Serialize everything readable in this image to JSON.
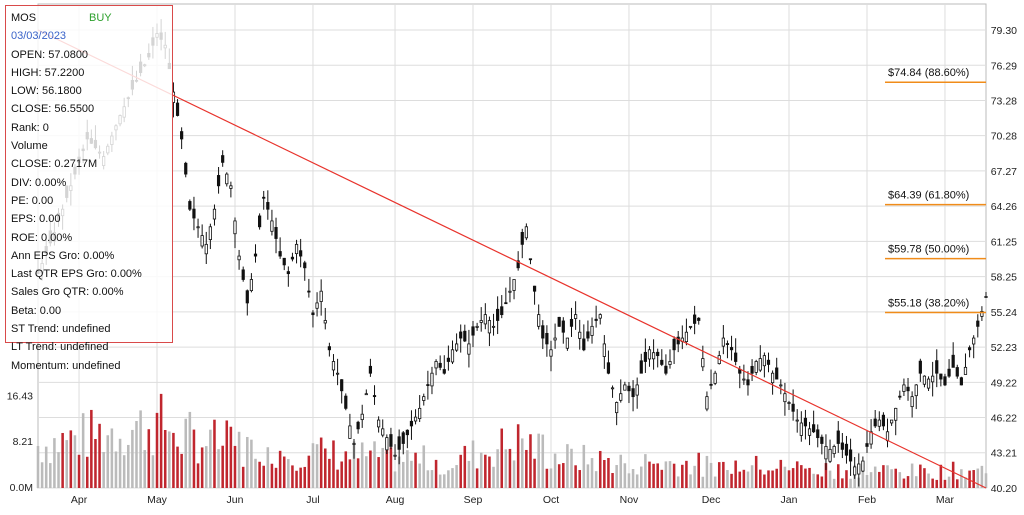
{
  "chart_data": {
    "type": "candlestick",
    "ticker": "MOS",
    "signal": "BUY",
    "date": "03/03/2023",
    "info": {
      "open": "OPEN: 57.0800",
      "high": "HIGH: 57.2200",
      "low": "LOW: 56.1800",
      "close": "CLOSE: 56.5500",
      "rank": "Rank: 0",
      "volume_label": "Volume",
      "volume_close": "CLOSE: 0.2717M",
      "div": "DIV: 0.00%",
      "pe": "PE: 0.00",
      "eps": "EPS: 0.00",
      "roe": "ROE: 0.00%",
      "ann_eps_gro": "Ann EPS Gro: 0.00%",
      "last_qtr_eps_gro": "Last QTR EPS Gro: 0.00%",
      "sales_gro_qtr": "Sales Gro QTR: 0.00%",
      "beta": "Beta: 0.00",
      "st_trend": "ST Trend: undefined",
      "lt_trend": "LT Trend: undefined",
      "momentum": "Momentum: undefined"
    },
    "x_months": [
      "Apr",
      "May",
      "Jun",
      "Jul",
      "Aug",
      "Sep",
      "Oct",
      "Nov",
      "Dec",
      "Jan",
      "Feb",
      "Mar"
    ],
    "price_axis": {
      "ticks": [
        79.3,
        76.29,
        73.28,
        70.28,
        67.27,
        64.26,
        61.25,
        58.25,
        55.24,
        52.23,
        49.22,
        46.22,
        43.21,
        40.2
      ],
      "ylim": [
        40.2,
        79.3
      ]
    },
    "volume_axis": {
      "ticks": [
        "16.43",
        "8.21",
        "0.0M"
      ],
      "values": [
        16.43,
        8.21,
        0.0
      ],
      "max": 21.5
    },
    "fib_levels": [
      {
        "label": "$74.84 (88.60%)",
        "value": 74.84
      },
      {
        "label": "$64.39 (61.80%)",
        "value": 64.39
      },
      {
        "label": "$59.78 (50.00%)",
        "value": 59.78
      },
      {
        "label": "$55.18 (38.20%)",
        "value": 55.18
      }
    ],
    "trendline": {
      "start": {
        "day": 0,
        "price": 79.3
      },
      "end": {
        "day": 231,
        "price": 40.2
      }
    },
    "total_days": 231,
    "close_series": [
      [
        0,
        58.5
      ],
      [
        4,
        62
      ],
      [
        8,
        66
      ],
      [
        12,
        70
      ],
      [
        16,
        68.5
      ],
      [
        20,
        72
      ],
      [
        24,
        75
      ],
      [
        27,
        77
      ],
      [
        29,
        79
      ],
      [
        31,
        78
      ],
      [
        33,
        74
      ],
      [
        35,
        70
      ],
      [
        37,
        64
      ],
      [
        39,
        62.5
      ],
      [
        41,
        61
      ],
      [
        43,
        64
      ],
      [
        45,
        68
      ],
      [
        47,
        66
      ],
      [
        49,
        60
      ],
      [
        51,
        56
      ],
      [
        53,
        60
      ],
      [
        55,
        65
      ],
      [
        57,
        63
      ],
      [
        59,
        60
      ],
      [
        61,
        58.5
      ],
      [
        63,
        61
      ],
      [
        65,
        59
      ],
      [
        67,
        55
      ],
      [
        69,
        57
      ],
      [
        71,
        52
      ],
      [
        73,
        50
      ],
      [
        75,
        47
      ],
      [
        77,
        44
      ],
      [
        79,
        46.5
      ],
      [
        81,
        50
      ],
      [
        83,
        46
      ],
      [
        85,
        44.5
      ],
      [
        87,
        43
      ],
      [
        89,
        44
      ],
      [
        91,
        45.5
      ],
      [
        93,
        47
      ],
      [
        95,
        49
      ],
      [
        97,
        51
      ],
      [
        99,
        50
      ],
      [
        101,
        52
      ],
      [
        103,
        53
      ],
      [
        105,
        52.5
      ],
      [
        107,
        54
      ],
      [
        109,
        55
      ],
      [
        111,
        54
      ],
      [
        113,
        55
      ],
      [
        115,
        57
      ],
      [
        117,
        59
      ],
      [
        118,
        61
      ],
      [
        119,
        62.5
      ],
      [
        121,
        57
      ],
      [
        123,
        53
      ],
      [
        125,
        52
      ],
      [
        127,
        54
      ],
      [
        129,
        53
      ],
      [
        131,
        55
      ],
      [
        133,
        52
      ],
      [
        135,
        54
      ],
      [
        137,
        55
      ],
      [
        139,
        50
      ],
      [
        141,
        47.5
      ],
      [
        143,
        49
      ],
      [
        145,
        48
      ],
      [
        147,
        50
      ],
      [
        149,
        52
      ],
      [
        151,
        51.5
      ],
      [
        153,
        50
      ],
      [
        155,
        52
      ],
      [
        157,
        53
      ],
      [
        159,
        54
      ],
      [
        161,
        54.5
      ],
      [
        163,
        48
      ],
      [
        165,
        50
      ],
      [
        167,
        53
      ],
      [
        169,
        52
      ],
      [
        171,
        50
      ],
      [
        173,
        49
      ],
      [
        175,
        51
      ],
      [
        177,
        51.5
      ],
      [
        179,
        50
      ],
      [
        181,
        49
      ],
      [
        183,
        47.5
      ],
      [
        185,
        46
      ],
      [
        187,
        45.5
      ],
      [
        189,
        45
      ],
      [
        191,
        44
      ],
      [
        193,
        43.5
      ],
      [
        195,
        44
      ],
      [
        197,
        43
      ],
      [
        199,
        42
      ],
      [
        201,
        42.5
      ],
      [
        203,
        45
      ],
      [
        205,
        46
      ],
      [
        207,
        45
      ],
      [
        209,
        47
      ],
      [
        211,
        49
      ],
      [
        213,
        48
      ],
      [
        215,
        50
      ],
      [
        217,
        49.5
      ],
      [
        219,
        50
      ],
      [
        221,
        49
      ],
      [
        223,
        50.5
      ],
      [
        225,
        49
      ],
      [
        227,
        52
      ],
      [
        229,
        54
      ],
      [
        231,
        56.55
      ]
    ],
    "volume_profile": [
      [
        0,
        8
      ],
      [
        20,
        11
      ],
      [
        30,
        12
      ],
      [
        40,
        9
      ],
      [
        60,
        7
      ],
      [
        80,
        6
      ],
      [
        100,
        5
      ],
      [
        118,
        9
      ],
      [
        125,
        6
      ],
      [
        140,
        5
      ],
      [
        160,
        4.5
      ],
      [
        180,
        4
      ],
      [
        200,
        3.5
      ],
      [
        215,
        3
      ],
      [
        231,
        3.5
      ]
    ],
    "colors": {
      "trendline": "#e8332c",
      "fib": "#f08c1a",
      "up_volume": "#bbbbbb",
      "down_volume": "#c0262e",
      "candle": "#111111",
      "grid": "#dddddd"
    }
  }
}
